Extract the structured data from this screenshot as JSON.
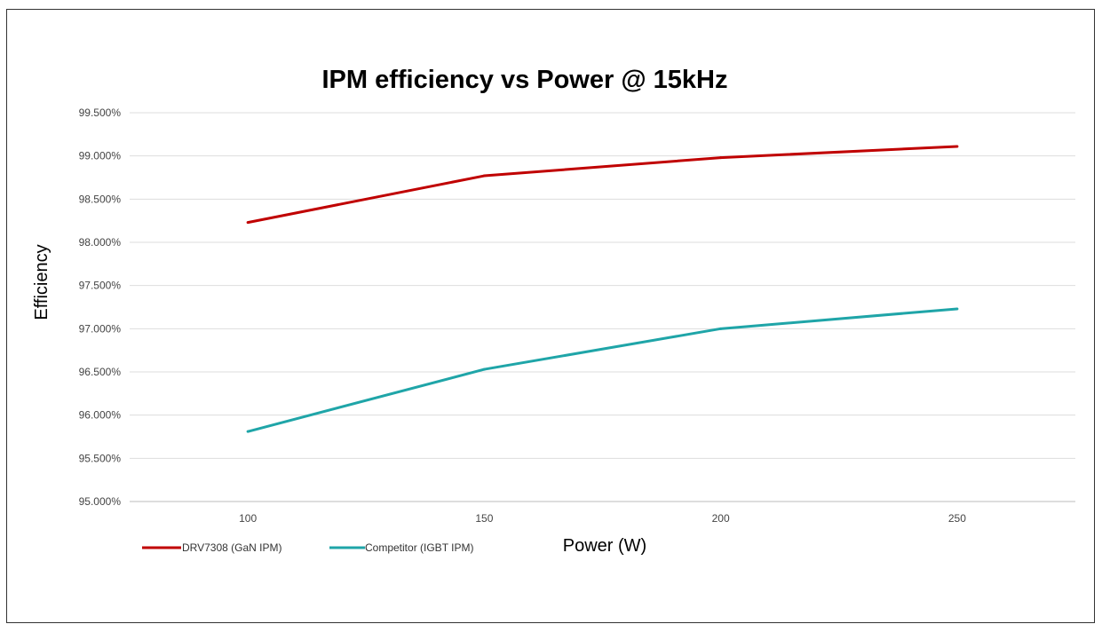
{
  "chart_data": {
    "type": "line",
    "title": "IPM efficiency vs Power @ 15kHz",
    "xlabel": "Power (W)",
    "ylabel": "Efficiency",
    "categories": [
      "100",
      "150",
      "200",
      "250"
    ],
    "ylim": [
      95.0,
      99.5
    ],
    "yticks": [
      "95.000%",
      "95.500%",
      "96.000%",
      "96.500%",
      "97.000%",
      "97.500%",
      "98.000%",
      "98.500%",
      "99.000%",
      "99.500%"
    ],
    "grid": true,
    "legend_position": "bottom-left",
    "series": [
      {
        "name": "DRV7308 (GaN IPM)",
        "color": "#c00000",
        "values": [
          98.23,
          98.77,
          98.98,
          99.11
        ]
      },
      {
        "name": "Competitor (IGBT IPM)",
        "color": "#1fa5a8",
        "values": [
          95.81,
          96.53,
          97.0,
          97.23
        ]
      }
    ]
  }
}
